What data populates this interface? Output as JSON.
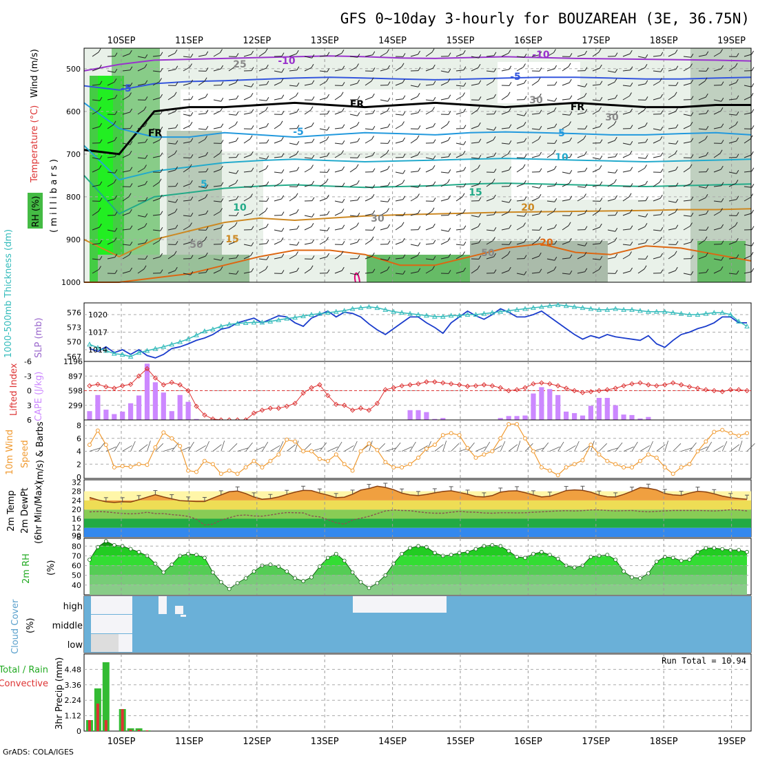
{
  "title": "GFS 0~10day 3-hourly for BOUZAREAH (3E, 36.75N)",
  "footer": "GrADS: COLA/IGES",
  "dates": [
    "10SEP",
    "11SEP",
    "12SEP",
    "13SEP",
    "14SEP",
    "15SEP",
    "16SEP",
    "17SEP",
    "18SEP",
    "19SEP"
  ],
  "panels": {
    "upper": {
      "ylabel_rh": "RH (%)",
      "ylabel_temp": "Temperature (°C)",
      "ylabel_wind": "Wind (m/s)",
      "ylabel_mb": "( m i l l i b a r s )",
      "levels": [
        "500",
        "600",
        "700",
        "800",
        "900",
        "1000"
      ],
      "contour_labels": [
        "-10",
        "-10",
        "-5",
        "-5",
        "FR",
        "FR",
        "FR",
        "-5",
        "5",
        "5",
        "10",
        "10",
        "15",
        "15",
        "20",
        "20",
        "25",
        "30",
        "30",
        "30",
        "50",
        "50"
      ]
    },
    "thick": {
      "label_thick": "1000-500mb Thickness (dm)",
      "label_slp": "SLP (mb)",
      "left_ticks": [
        "576",
        "573",
        "570",
        "567"
      ],
      "right_ticks": [
        "1020",
        "1017",
        "1014"
      ]
    },
    "cape": {
      "label_li": "Lifted Index",
      "label_cape": "CAPE (J/kg)",
      "left_ticks": [
        "-6",
        "-3",
        "0",
        "3",
        "6"
      ],
      "right_ticks": [
        "1196",
        "897",
        "598",
        "299"
      ]
    },
    "wind10": {
      "label_a": "10m Wind",
      "label_b": "Speed",
      "label_c": "(m/s) & Barbs",
      "ticks": [
        "8",
        "6",
        "4",
        "2",
        "0"
      ]
    },
    "temp2m": {
      "label_a": "2m Temp",
      "label_b": "2m DewPt",
      "label_c": "(6hr Min/Max)",
      "ticks": [
        "32",
        "28",
        "24",
        "20",
        "16",
        "12",
        "8",
        "90"
      ]
    },
    "rh2m": {
      "label_a": "2m RH",
      "label_b": "(%)",
      "ticks": [
        "80",
        "70",
        "60",
        "50",
        "40"
      ]
    },
    "cloud": {
      "label_a": "Cloud Cover",
      "label_b": "(%)",
      "rows": [
        "high",
        "middle",
        "low"
      ]
    },
    "precip": {
      "label_a": "Total / Rain",
      "label_b": "Convective",
      "label_c": "3hr Precip (mm)",
      "ticks": [
        "4.48",
        "3.36",
        "2.24",
        "1.12",
        "0"
      ],
      "run_total": "Run Total = 10.94"
    }
  },
  "chart_data": [
    {
      "type": "line",
      "title": "GFS 0~10day 3-hourly for BOUZAREAH (3E, 36.75N)",
      "panel": "1000-500mb Thickness (dm) & SLP (mb)",
      "series": [
        {
          "name": "1000-500mb Thickness (dm)",
          "axis": "left",
          "ylim": [
            566,
            578
          ],
          "values": [
            569.5,
            568.8,
            568.2,
            567.6,
            567.4,
            567.0,
            567.8,
            568.2,
            568.6,
            569.0,
            569.5,
            570.0,
            570.6,
            571.4,
            572.2,
            572.6,
            573.2,
            573.6,
            573.8,
            573.9,
            574.0,
            574.0,
            574.2,
            574.5,
            574.8,
            575.0,
            575.3,
            575.6,
            575.8,
            576.0,
            576.2,
            576.4,
            576.8,
            577.0,
            577.2,
            577.0,
            576.6,
            576.2,
            576.0,
            575.8,
            575.6,
            575.4,
            575.2,
            575.2,
            575.4,
            575.4,
            575.6,
            575.6,
            575.8,
            576.0,
            576.2,
            576.4,
            576.6,
            576.8,
            577.0,
            577.2,
            577.4,
            577.6,
            577.4,
            577.2,
            577.0,
            576.8,
            576.6,
            576.6,
            576.8,
            576.6,
            576.6,
            576.4,
            576.2,
            576.2,
            576.2,
            576.0,
            575.8,
            575.6,
            575.6,
            575.8,
            576.0,
            576.0,
            575.6,
            574.2,
            573.2
          ]
        },
        {
          "name": "SLP (mb)",
          "axis": "right",
          "ylim": [
            1012,
            1022
          ],
          "values": [
            1014.2,
            1013.7,
            1014.5,
            1013.5,
            1014.0,
            1013.2,
            1014.0,
            1013.0,
            1012.6,
            1013.2,
            1014.2,
            1014.5,
            1015.0,
            1015.6,
            1016.0,
            1016.6,
            1017.5,
            1017.8,
            1018.6,
            1019.0,
            1019.4,
            1018.6,
            1019.2,
            1019.8,
            1019.6,
            1018.6,
            1018.0,
            1019.4,
            1020.0,
            1020.6,
            1019.6,
            1020.4,
            1020.2,
            1019.6,
            1018.4,
            1017.4,
            1016.6,
            1017.6,
            1018.6,
            1019.6,
            1019.6,
            1018.6,
            1017.8,
            1016.8,
            1018.6,
            1019.6,
            1020.6,
            1019.8,
            1019.2,
            1020.0,
            1021.0,
            1020.4,
            1019.6,
            1019.6,
            1020.0,
            1020.6,
            1019.6,
            1018.6,
            1017.6,
            1016.6,
            1015.8,
            1016.4,
            1016.0,
            1016.6,
            1016.2,
            1016.0,
            1015.8,
            1015.6,
            1016.4,
            1015.0,
            1014.4,
            1015.6,
            1016.6,
            1017.0,
            1017.6,
            1018.0,
            1018.6,
            1019.6,
            1019.6,
            1018.6,
            1018.6
          ]
        }
      ]
    },
    {
      "type": "bar",
      "panel": "Lifted Index & CAPE (J/kg)",
      "series": [
        {
          "name": "CAPE (J/kg)",
          "axis": "right",
          "ylim": [
            0,
            1196
          ],
          "values": [
            180,
            510,
            210,
            120,
            170,
            340,
            500,
            1150,
            770,
            560,
            180,
            510,
            370,
            20,
            0,
            0,
            0,
            0,
            0,
            0,
            0,
            0,
            0,
            0,
            0,
            0,
            0,
            0,
            0,
            0,
            0,
            0,
            0,
            0,
            0,
            0,
            0,
            0,
            0,
            200,
            200,
            160,
            20,
            40,
            0,
            0,
            0,
            0,
            0,
            0,
            40,
            80,
            80,
            90,
            540,
            670,
            630,
            510,
            170,
            140,
            90,
            290,
            450,
            450,
            300,
            110,
            100,
            30,
            60,
            0,
            0,
            0,
            0,
            0,
            0,
            0,
            0,
            0,
            0,
            0,
            0
          ]
        },
        {
          "name": "Lifted Index",
          "axis": "left",
          "ylim": [
            -6,
            6
          ],
          "values": [
            -1.0,
            -1.3,
            -0.8,
            -0.5,
            -1.0,
            -1.3,
            -3.0,
            -4.5,
            -2.6,
            -1.2,
            -1.7,
            -1.2,
            0.0,
            3.2,
            5.0,
            5.8,
            6.0,
            6.0,
            6.0,
            6.0,
            4.6,
            4.0,
            3.6,
            3.6,
            3.2,
            2.6,
            0.5,
            -0.6,
            -1.2,
            1.0,
            2.8,
            3.0,
            4.0,
            3.6,
            4.0,
            2.6,
            -0.2,
            -0.6,
            -1.0,
            -1.2,
            -1.4,
            -1.8,
            -1.8,
            -1.6,
            -1.4,
            -1.2,
            -0.9,
            -1.0,
            -1.2,
            -1.0,
            -0.6,
            0.0,
            -0.2,
            -0.6,
            -1.4,
            -1.6,
            -1.4,
            -1.0,
            -0.5,
            0.0,
            0.4,
            0.2,
            0.0,
            -0.2,
            -0.5,
            -1.0,
            -1.4,
            -1.6,
            -1.2,
            -1.0,
            -1.2,
            -1.6,
            -1.2,
            -0.8,
            -0.5,
            -0.2,
            0.0,
            0.2,
            -0.2,
            -0.2,
            0.0
          ]
        }
      ]
    },
    {
      "type": "line",
      "panel": "10m Wind Speed (m/s) & Barbs",
      "ylim": [
        0,
        8
      ],
      "series": [
        {
          "name": "10m Wind Speed",
          "values": [
            5.0,
            7.2,
            5.0,
            1.5,
            1.7,
            1.6,
            2.0,
            1.9,
            4.6,
            6.9,
            6.0,
            4.8,
            1.0,
            0.8,
            2.5,
            2.0,
            0.5,
            1.0,
            0.5,
            1.5,
            2.5,
            1.5,
            2.5,
            3.5,
            5.8,
            5.5,
            4.0,
            4.0,
            2.8,
            2.5,
            3.5,
            2.0,
            1.0,
            4.0,
            5.2,
            4.2,
            2.3,
            1.5,
            1.5,
            2.0,
            3.0,
            4.4,
            5.0,
            6.5,
            6.8,
            6.5,
            4.5,
            3.0,
            3.5,
            4.0,
            6.0,
            8.2,
            8.2,
            6.0,
            4.0,
            1.5,
            1.0,
            0.3,
            1.5,
            2.0,
            2.6,
            5.0,
            3.5,
            2.5,
            2.0,
            1.5,
            1.5,
            2.5,
            3.5,
            3.0,
            1.5,
            0.5,
            1.5,
            2.0,
            4.0,
            5.5,
            7.0,
            7.3,
            6.8,
            6.4,
            6.8
          ]
        }
      ]
    },
    {
      "type": "area",
      "panel": "2m Temp & 2m DewPt (6hr Min/Max)",
      "ylim": [
        8,
        33
      ],
      "series": [
        {
          "name": "2m Temp",
          "values": [
            25.3,
            24.2,
            23.4,
            23.1,
            23.4,
            23.3,
            24.3,
            25.4,
            26.5,
            25.5,
            24.7,
            23.9,
            23.7,
            23.5,
            23.5,
            25.0,
            26.4,
            27.8,
            28.1,
            27.0,
            25.5,
            24.5,
            24.8,
            25.5,
            26.6,
            27.6,
            28.4,
            28.3,
            27.2,
            26.3,
            25.2,
            25.4,
            26.7,
            28.5,
            29.2,
            30.2,
            29.7,
            28.7,
            27.2,
            26.4,
            26.1,
            26.6,
            27.3,
            27.9,
            28.2,
            27.5,
            26.7,
            25.7,
            25.5,
            26.1,
            27.6,
            28.1,
            28.2,
            27.4,
            26.4,
            25.5,
            25.8,
            27.0,
            28.3,
            28.6,
            28.4,
            27.6,
            26.3,
            25.6,
            25.5,
            26.6,
            28.0,
            29.6,
            29.3,
            28.6,
            27.0,
            26.4,
            26.2,
            27.2,
            28.0,
            27.7,
            26.9,
            25.9,
            25.2,
            24.8,
            24.5
          ]
        },
        {
          "name": "2m DewPt",
          "values": [
            19.0,
            19.1,
            19.0,
            18.6,
            18.3,
            18.1,
            18.3,
            18.8,
            18.2,
            18.2,
            17.8,
            17.5,
            17.0,
            15.8,
            13.2,
            13.6,
            15.4,
            16.4,
            17.4,
            17.6,
            17.2,
            17.1,
            17.6,
            18.2,
            18.7,
            18.6,
            18.5,
            17.2,
            16.8,
            15.6,
            14.2,
            13.6,
            15.4,
            16.2,
            17.0,
            18.2,
            19.4,
            19.8,
            19.6,
            19.5,
            19.0,
            18.6,
            18.4,
            18.4,
            18.8,
            19.2,
            18.9,
            18.8,
            18.5,
            18.4,
            18.6,
            18.6,
            18.5,
            18.6,
            18.8,
            19.0,
            19.2,
            19.4,
            19.5,
            19.4,
            19.5,
            19.8,
            19.8,
            19.6,
            19.4,
            19.5,
            19.6,
            19.2,
            19.0,
            19.2,
            19.4,
            19.6,
            19.6,
            19.6,
            19.6,
            19.5,
            19.4,
            19.6,
            19.9,
            19.8,
            19.4
          ]
        }
      ]
    },
    {
      "type": "area",
      "panel": "2m RH (%)",
      "ylim": [
        30,
        90
      ],
      "series": [
        {
          "name": "2m RH",
          "values": [
            66,
            79,
            85,
            81,
            80,
            77,
            74,
            70,
            62,
            53,
            61,
            70,
            72,
            71,
            68,
            53,
            43,
            36,
            42,
            47,
            54,
            60,
            61,
            59,
            54,
            47,
            44,
            48,
            59,
            68,
            72,
            65,
            53,
            43,
            37,
            42,
            50,
            62,
            72,
            78,
            80,
            79,
            73,
            70,
            71,
            73,
            74,
            77,
            80,
            81,
            80,
            75,
            69,
            68,
            72,
            74,
            71,
            67,
            60,
            58,
            60,
            69,
            70,
            71,
            66,
            54,
            48,
            47,
            52,
            64,
            69,
            68,
            65,
            66,
            74,
            78,
            78,
            77,
            76,
            76,
            74
          ]
        }
      ]
    },
    {
      "type": "bar",
      "panel": "3hr Precip (mm)",
      "ylim": [
        0,
        5.6
      ],
      "series": [
        {
          "name": "Total / Rain",
          "values": [
            0.8,
            3.1,
            5.0,
            0.0,
            1.6,
            0.2,
            0.2,
            0.05
          ]
        },
        {
          "name": "Convective",
          "values": [
            0.8,
            2.0,
            0.8,
            0.0,
            1.6,
            0.1,
            0.1,
            0.05
          ]
        }
      ]
    }
  ],
  "colors": {
    "thickness": "#33bbbb",
    "slp": "#1a3ccc",
    "li": "#dd3333",
    "cape": "#cc88ff",
    "wind": "#f09a30",
    "temp_fill": "#f0a040",
    "temp_line": "#8a4010",
    "dewpt": "#8a5050",
    "rh": "#22cc22",
    "cloud": "#6ab0d8",
    "precip_total": "#33bb33",
    "precip_conv": "#dd3333"
  }
}
